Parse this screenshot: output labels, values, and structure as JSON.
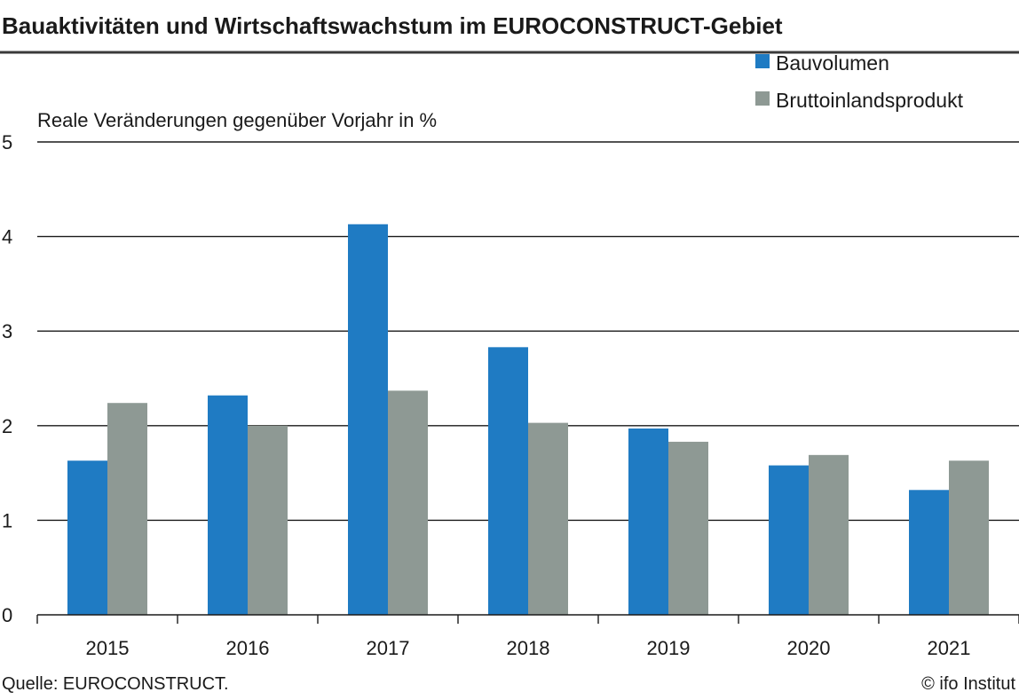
{
  "chart_data": {
    "type": "bar",
    "title": "Bauaktivitäten und Wirtschaftswachstum im EUROCONSTRUCT-Gebiet",
    "ylabel": "Reale Veränderungen gegenüber Vorjahr in %",
    "xlabel": "",
    "categories": [
      "2015",
      "2016",
      "2017",
      "2018",
      "2019",
      "2020",
      "2021"
    ],
    "series": [
      {
        "name": "Bauvolumen",
        "color": "#1f7bc3",
        "values": [
          1.63,
          2.32,
          4.13,
          2.83,
          1.97,
          1.58,
          1.32
        ]
      },
      {
        "name": "Bruttoinlandsprodukt",
        "color": "#8e9994",
        "values": [
          2.24,
          2.0,
          2.37,
          2.03,
          1.83,
          1.69,
          1.63
        ]
      }
    ],
    "ylim": [
      0,
      5
    ],
    "yticks": [
      "0",
      "1",
      "2",
      "3",
      "4",
      "5"
    ],
    "grid": true,
    "legend_position": "top-right",
    "source": "Quelle: EUROCONSTRUCT.",
    "copyright": "© ifo Institut"
  }
}
